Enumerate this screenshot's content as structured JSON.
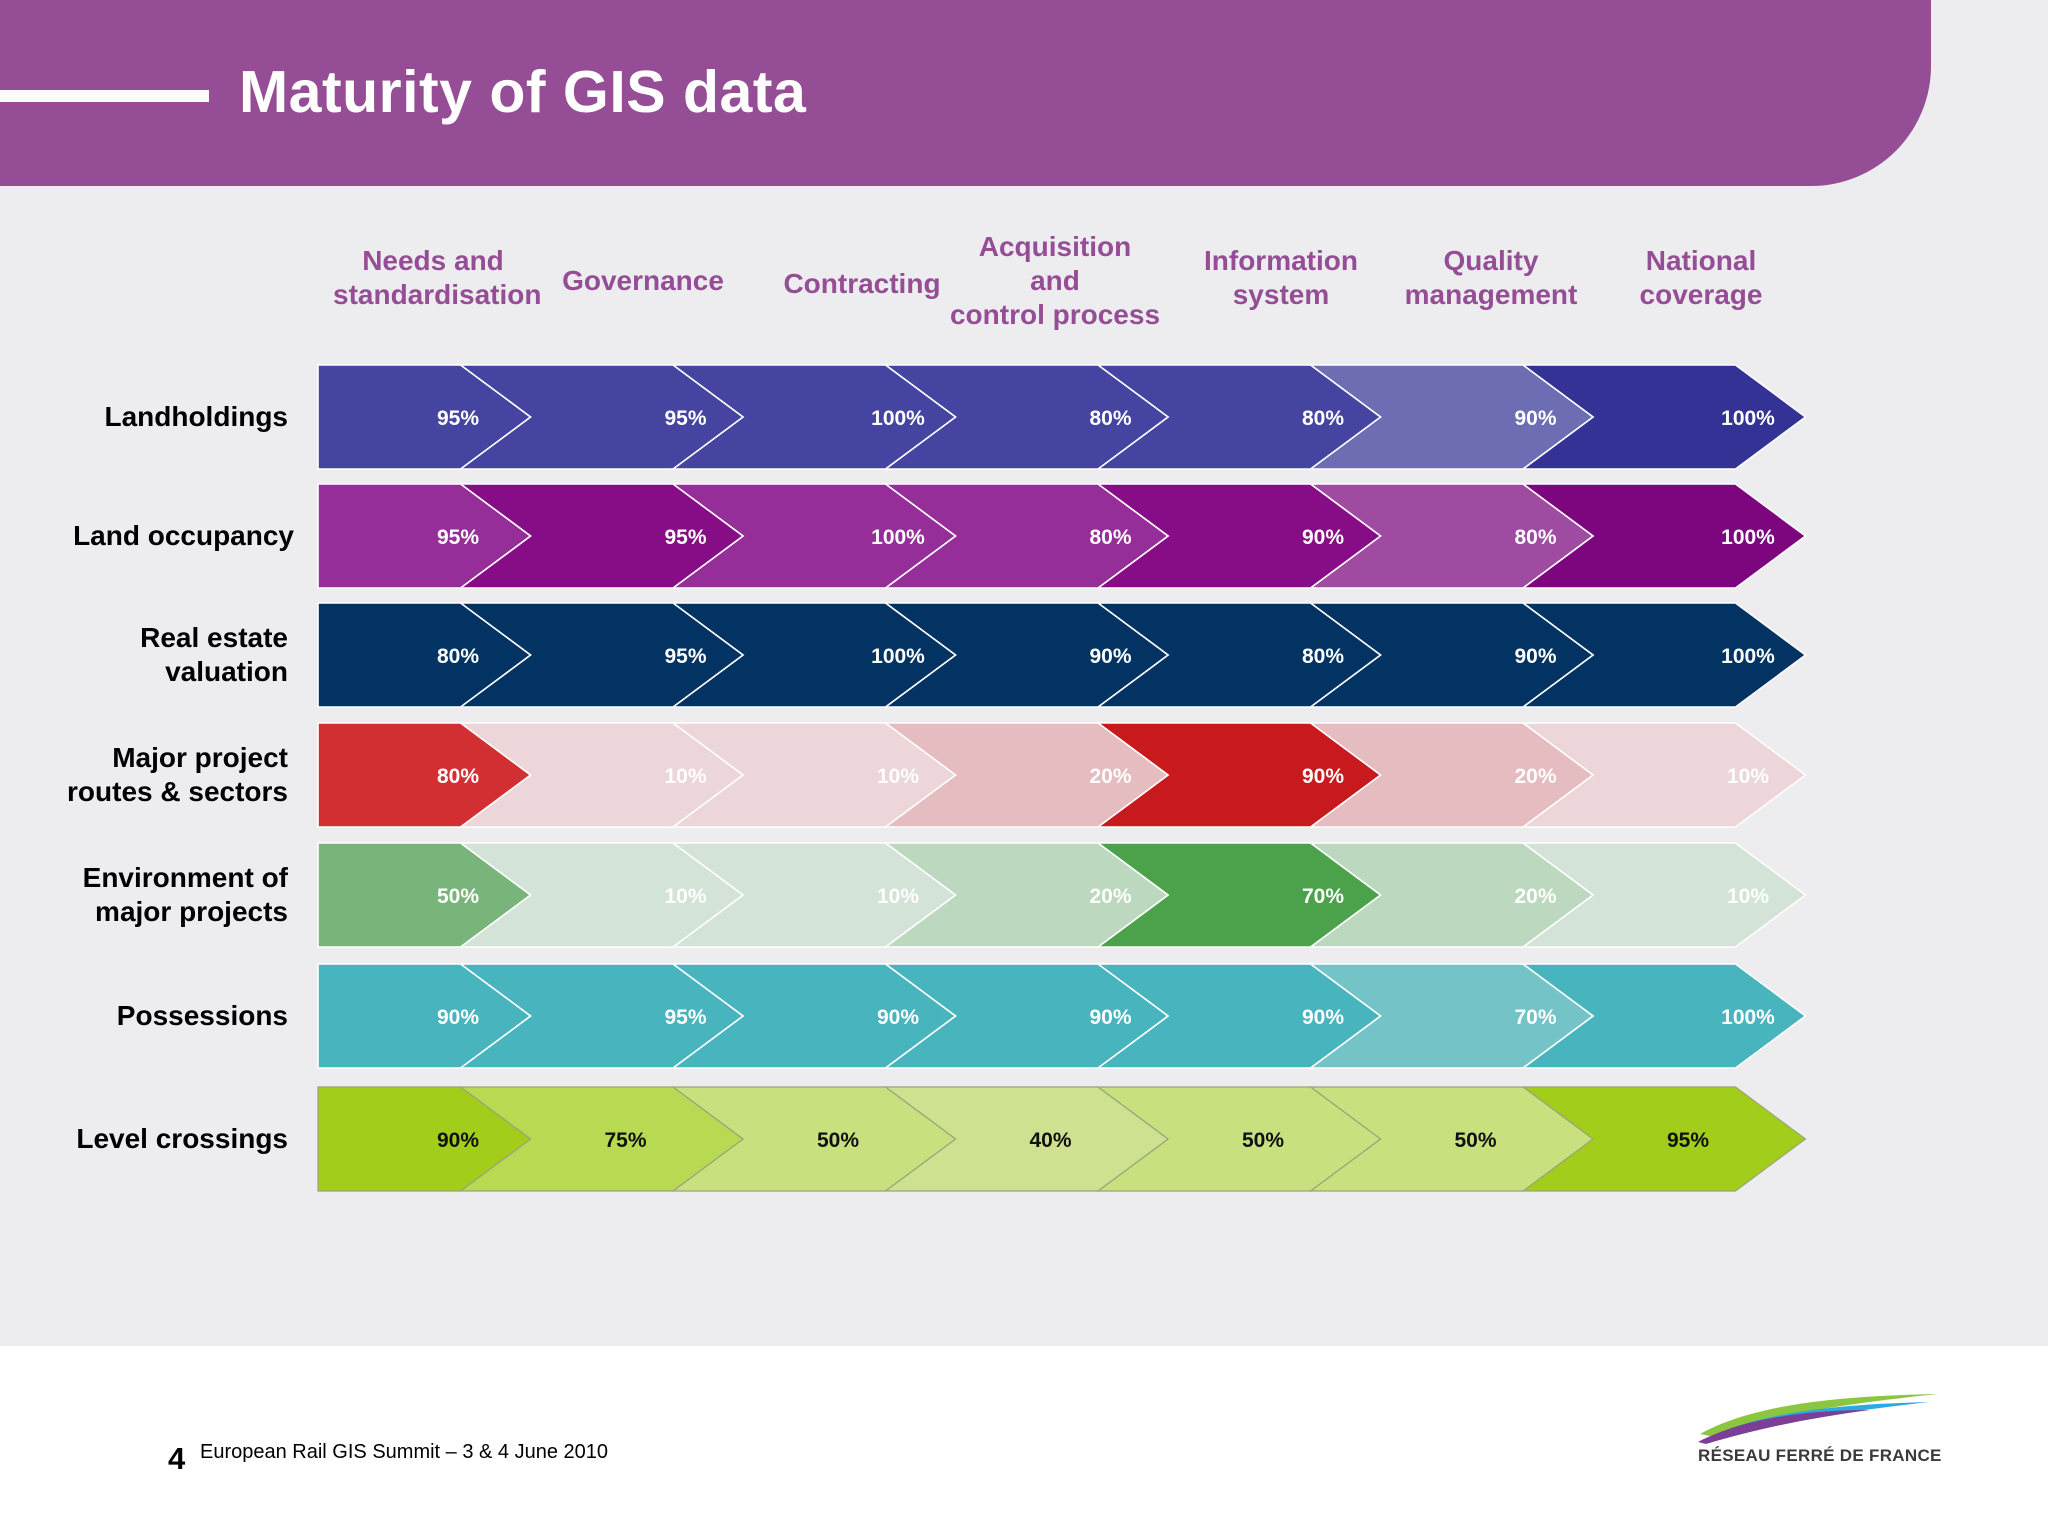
{
  "title": "Maturity of GIS data",
  "columns": [
    {
      "label": "Needs and\nstandardisation"
    },
    {
      "label": "Governance"
    },
    {
      "label": "Contracting"
    },
    {
      "label": "Acquisition\nand\ncontrol process"
    },
    {
      "label": "Information\nsystem"
    },
    {
      "label": "Quality\nmanagement"
    },
    {
      "label": "National\ncoverage"
    }
  ],
  "rows": [
    {
      "label": "Landholdings",
      "cells": [
        {
          "value": "95%",
          "color": "#4544a1",
          "text_color": "#ffffff"
        },
        {
          "value": "95%",
          "color": "#4544a1",
          "text_color": "#ffffff"
        },
        {
          "value": "100%",
          "color": "#4544a1",
          "text_color": "#ffffff"
        },
        {
          "value": "80%",
          "color": "#4544a1",
          "text_color": "#ffffff"
        },
        {
          "value": "80%",
          "color": "#4544a1",
          "text_color": "#ffffff"
        },
        {
          "value": "90%",
          "color": "#6c6db3",
          "text_color": "#ffffff"
        },
        {
          "value": "100%",
          "color": "#343395",
          "text_color": "#ffffff"
        }
      ]
    },
    {
      "label": "Land occupancy",
      "cells": [
        {
          "value": "95%",
          "color": "#962e99",
          "text_color": "#ffffff"
        },
        {
          "value": "95%",
          "color": "#860d86",
          "text_color": "#ffffff"
        },
        {
          "value": "100%",
          "color": "#962e99",
          "text_color": "#ffffff"
        },
        {
          "value": "80%",
          "color": "#962e99",
          "text_color": "#ffffff"
        },
        {
          "value": "90%",
          "color": "#860d86",
          "text_color": "#ffffff"
        },
        {
          "value": "80%",
          "color": "#a04ba2",
          "text_color": "#ffffff"
        },
        {
          "value": "100%",
          "color": "#7d057e",
          "text_color": "#ffffff"
        }
      ]
    },
    {
      "label": "Real estate\nvaluation",
      "cells": [
        {
          "value": "80%",
          "color": "#023363",
          "text_color": "#ffffff"
        },
        {
          "value": "95%",
          "color": "#023363",
          "text_color": "#ffffff"
        },
        {
          "value": "100%",
          "color": "#023363",
          "text_color": "#ffffff"
        },
        {
          "value": "90%",
          "color": "#023363",
          "text_color": "#ffffff"
        },
        {
          "value": "80%",
          "color": "#023363",
          "text_color": "#ffffff"
        },
        {
          "value": "90%",
          "color": "#023363",
          "text_color": "#ffffff"
        },
        {
          "value": "100%",
          "color": "#023363",
          "text_color": "#ffffff"
        }
      ]
    },
    {
      "label": "Major project\nroutes & sectors",
      "cells": [
        {
          "value": "80%",
          "color": "#d22f32",
          "text_color": "#ffffff"
        },
        {
          "value": "10%",
          "color": "#ecd6d9",
          "text_color": "#ffffff"
        },
        {
          "value": "10%",
          "color": "#ecd6d9",
          "text_color": "#ffffff"
        },
        {
          "value": "20%",
          "color": "#e5bcbf",
          "text_color": "#ffffff"
        },
        {
          "value": "90%",
          "color": "#c8191d",
          "text_color": "#ffffff"
        },
        {
          "value": "20%",
          "color": "#e5bcbf",
          "text_color": "#ffffff"
        },
        {
          "value": "10%",
          "color": "#ecd6d9",
          "text_color": "#ffffff"
        }
      ]
    },
    {
      "label": "Environment of\nmajor projects",
      "cells": [
        {
          "value": "50%",
          "color": "#79b57a",
          "text_color": "#ffffff"
        },
        {
          "value": "10%",
          "color": "#d4e3d8",
          "text_color": "#ffffff"
        },
        {
          "value": "10%",
          "color": "#d4e3d8",
          "text_color": "#ffffff"
        },
        {
          "value": "20%",
          "color": "#bcd9bf",
          "text_color": "#ffffff"
        },
        {
          "value": "70%",
          "color": "#4ca24b",
          "text_color": "#ffffff"
        },
        {
          "value": "20%",
          "color": "#bcd9bf",
          "text_color": "#ffffff"
        },
        {
          "value": "10%",
          "color": "#d4e3d8",
          "text_color": "#ffffff"
        }
      ]
    },
    {
      "label": "Possessions",
      "cells": [
        {
          "value": "90%",
          "color": "#48b4bd",
          "text_color": "#ffffff"
        },
        {
          "value": "95%",
          "color": "#48b4bd",
          "text_color": "#ffffff"
        },
        {
          "value": "90%",
          "color": "#48b4bd",
          "text_color": "#ffffff"
        },
        {
          "value": "90%",
          "color": "#48b4bd",
          "text_color": "#ffffff"
        },
        {
          "value": "90%",
          "color": "#48b4bd",
          "text_color": "#ffffff"
        },
        {
          "value": "70%",
          "color": "#74c3c6",
          "text_color": "#ffffff"
        },
        {
          "value": "100%",
          "color": "#48b4bd",
          "text_color": "#ffffff"
        }
      ]
    },
    {
      "label": "Level crossings",
      "cells": [
        {
          "value": "90%",
          "color": "#a2cd1b",
          "text_color": "#111111"
        },
        {
          "value": "75%",
          "color": "#b8da52",
          "text_color": "#111111"
        },
        {
          "value": "50%",
          "color": "#c9e07e",
          "text_color": "#111111"
        },
        {
          "value": "40%",
          "color": "#cde190",
          "text_color": "#111111"
        },
        {
          "value": "50%",
          "color": "#c9e07e",
          "text_color": "#111111"
        },
        {
          "value": "50%",
          "color": "#c9e07e",
          "text_color": "#111111"
        },
        {
          "value": "95%",
          "color": "#a2cd1b",
          "text_color": "#111111"
        }
      ]
    }
  ],
  "footer": {
    "page_number": "4",
    "event": "European Rail GIS Summit – 3 & 4 June 2010",
    "logo_text": "RÉSEAU FERRÉ DE FRANCE"
  },
  "colors": {
    "header": "#954d96",
    "column_header_text": "#954d96",
    "background": "#ededf0"
  },
  "icons": {
    "logo": "rff-logo-swoosh-icon"
  }
}
